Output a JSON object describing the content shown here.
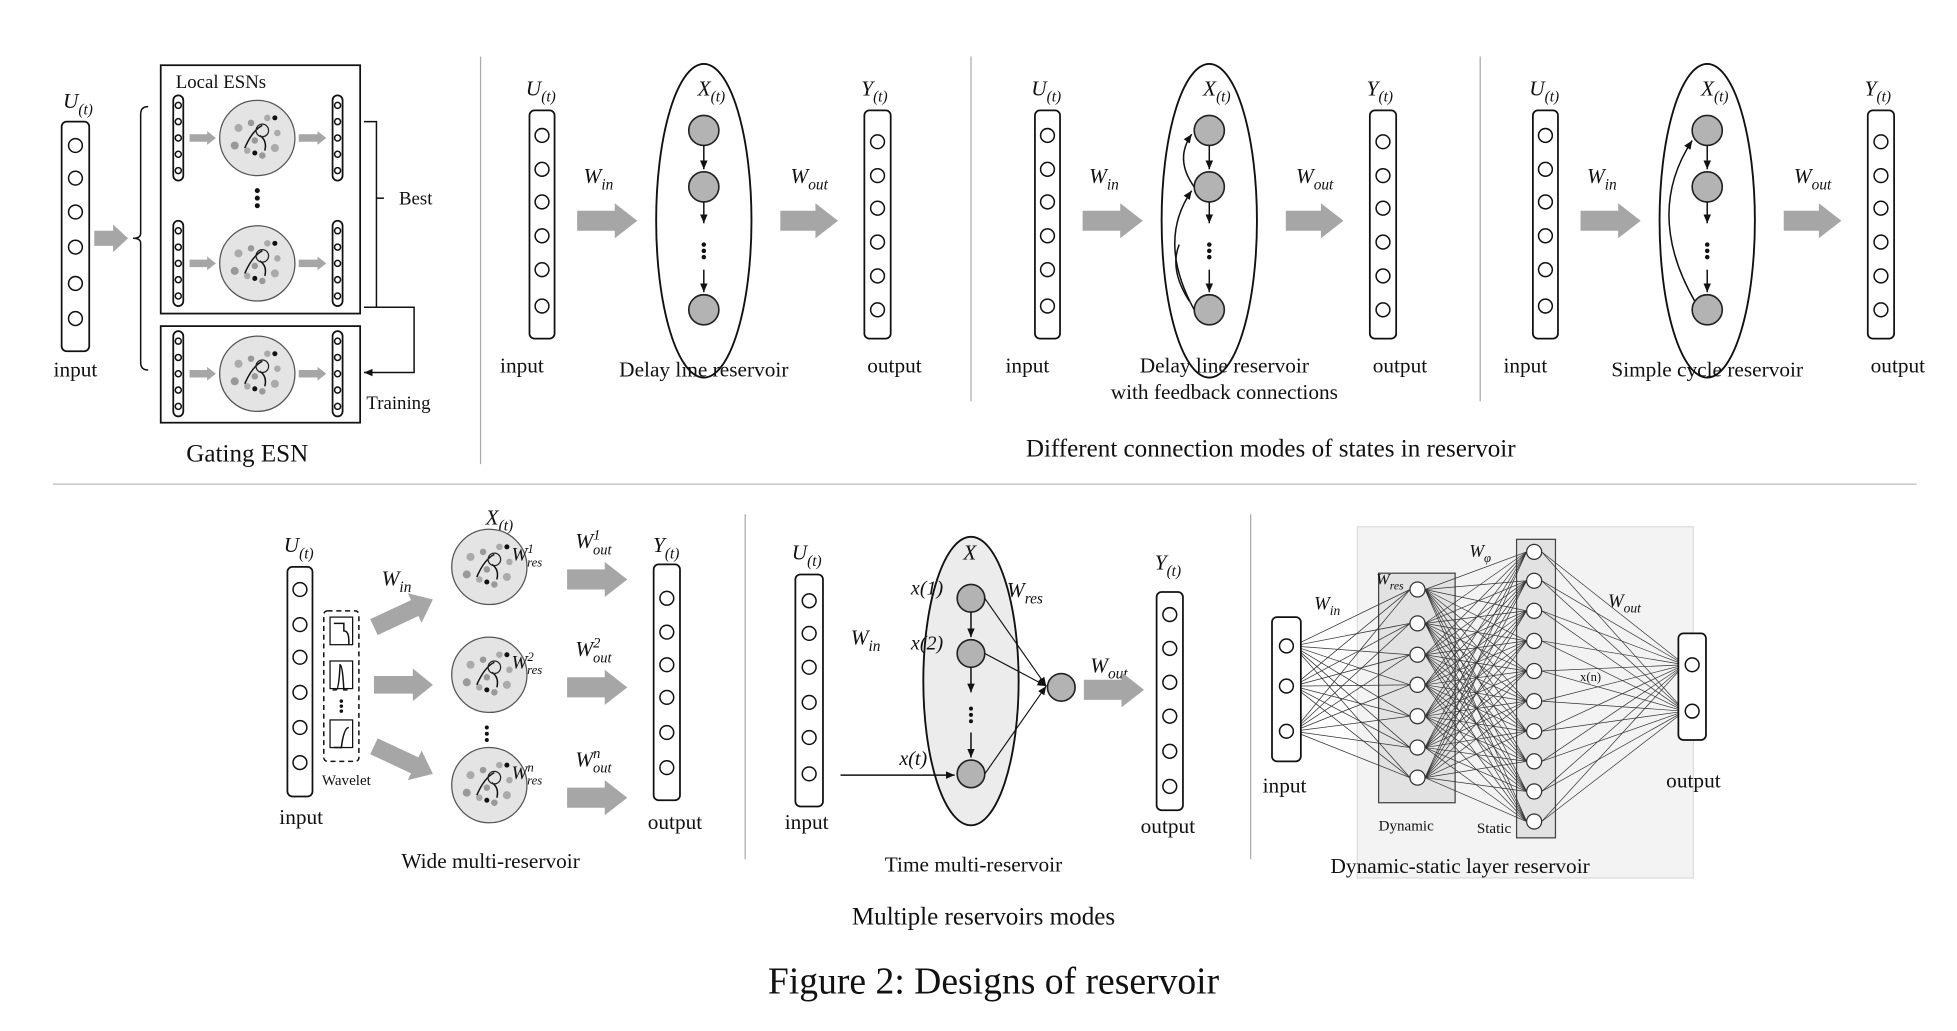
{
  "caption": "Figure 2: Designs of reservoir",
  "gating_esn": {
    "title": "Gating ESN",
    "local_esns": "Local ESNs",
    "best": "Best",
    "training": "Training",
    "input_label": "input",
    "input_var": {
      "base": "U",
      "sub": "(t)"
    }
  },
  "connection_modes": {
    "title": "Different connection modes of states in reservoir",
    "panels": [
      {
        "name": [
          "Delay line reservoir"
        ],
        "input_label": "input",
        "output_label": "output",
        "input_var": {
          "base": "U",
          "sub": "(t)"
        },
        "state_var": {
          "base": "X",
          "sub": "(t)"
        },
        "output_var": {
          "base": "Y",
          "sub": "(t)"
        },
        "w_in": {
          "base": "W",
          "sub": "in"
        },
        "w_out": {
          "base": "W",
          "sub": "out"
        }
      },
      {
        "name": [
          "Delay line reservoir",
          "with feedback connections"
        ],
        "input_label": "input",
        "output_label": "output",
        "input_var": {
          "base": "U",
          "sub": "(t)"
        },
        "state_var": {
          "base": "X",
          "sub": "(t)"
        },
        "output_var": {
          "base": "Y",
          "sub": "(t)"
        },
        "w_in": {
          "base": "W",
          "sub": "in"
        },
        "w_out": {
          "base": "W",
          "sub": "out"
        }
      },
      {
        "name": [
          "Simple cycle reservoir"
        ],
        "input_label": "input",
        "output_label": "output",
        "input_var": {
          "base": "U",
          "sub": "(t)"
        },
        "state_var": {
          "base": "X",
          "sub": "(t)"
        },
        "output_var": {
          "base": "Y",
          "sub": "(t)"
        },
        "w_in": {
          "base": "W",
          "sub": "in"
        },
        "w_out": {
          "base": "W",
          "sub": "out"
        }
      }
    ]
  },
  "multiple_reservoirs": {
    "title": "Multiple reservoirs modes",
    "wide": {
      "name": "Wide multi-reservoir",
      "input_label": "input",
      "output_label": "output",
      "wavelet": "Wavelet",
      "input_var": {
        "base": "U",
        "sub": "(t)"
      },
      "state_var": {
        "base": "X",
        "sub": "(t)"
      },
      "output_var": {
        "base": "Y",
        "sub": "(t)"
      },
      "w_in": {
        "base": "W",
        "sub": "in"
      },
      "w_res": [
        {
          "base": "W",
          "sub": "res",
          "sup": "1"
        },
        {
          "base": "W",
          "sub": "res",
          "sup": "2"
        },
        {
          "base": "W",
          "sub": "res",
          "sup": "n"
        }
      ],
      "w_out": [
        {
          "base": "W",
          "sub": "out",
          "sup": "1"
        },
        {
          "base": "W",
          "sub": "out",
          "sup": "2"
        },
        {
          "base": "W",
          "sub": "out",
          "sup": "n"
        }
      ]
    },
    "time": {
      "name": "Time multi-reservoir",
      "input_label": "input",
      "output_label": "output",
      "input_var": {
        "base": "U",
        "sub": "(t)"
      },
      "state_var": {
        "base": "X"
      },
      "output_var": {
        "base": "Y",
        "sub": "(t)"
      },
      "w_in": {
        "base": "W",
        "sub": "in"
      },
      "w_res": {
        "base": "W",
        "sub": "res"
      },
      "w_out": {
        "base": "W",
        "sub": "out"
      },
      "nodes": [
        "x(1)",
        "x(2)",
        "x(t)"
      ]
    },
    "dynamic_static": {
      "name": "Dynamic-static layer reservoir",
      "input_label": "input",
      "output_label": "output",
      "dynamic": "Dynamic",
      "static": "Static",
      "w_in": {
        "base": "W",
        "sub": "in"
      },
      "w_res": {
        "base": "W",
        "sub": "res"
      },
      "w_phi": {
        "base": "W",
        "sub": "φ"
      },
      "w_out": {
        "base": "W",
        "sub": "out"
      },
      "node": "x(n)"
    }
  }
}
